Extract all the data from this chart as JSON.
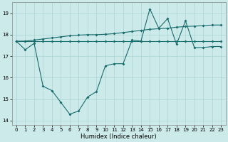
{
  "xlabel": "Humidex (Indice chaleur)",
  "background_color": "#cceaea",
  "line_color": "#1a6b6b",
  "grid_color": "#aad4d4",
  "xlim": [
    -0.5,
    23.5
  ],
  "ylim": [
    13.8,
    19.5
  ],
  "yticks": [
    14,
    15,
    16,
    17,
    18,
    19
  ],
  "xticks": [
    0,
    1,
    2,
    3,
    4,
    5,
    6,
    7,
    8,
    9,
    10,
    11,
    12,
    13,
    14,
    15,
    16,
    17,
    18,
    19,
    20,
    21,
    22,
    23
  ],
  "line_volatile_x": [
    0,
    1,
    2,
    3,
    4,
    5,
    6,
    7,
    8,
    9,
    10,
    11,
    12,
    13,
    14,
    15,
    16,
    17,
    18,
    19,
    20,
    21,
    22,
    23
  ],
  "line_volatile_y": [
    17.7,
    17.3,
    17.6,
    15.6,
    15.4,
    14.85,
    14.3,
    14.45,
    15.1,
    15.35,
    16.55,
    16.65,
    16.65,
    17.75,
    17.7,
    19.2,
    18.3,
    18.75,
    17.55,
    18.65,
    17.4,
    17.4,
    17.45,
    17.45
  ],
  "line_rising_x": [
    0,
    1,
    2,
    3,
    4,
    5,
    6,
    7,
    8,
    9,
    10,
    11,
    12,
    13,
    14,
    15,
    16,
    17,
    18,
    19,
    20,
    21,
    22,
    23
  ],
  "line_rising_y": [
    17.7,
    17.7,
    17.75,
    17.8,
    17.85,
    17.9,
    17.95,
    17.98,
    18.0,
    18.0,
    18.02,
    18.05,
    18.1,
    18.15,
    18.2,
    18.25,
    18.28,
    18.3,
    18.35,
    18.38,
    18.4,
    18.42,
    18.45,
    18.45
  ],
  "line_flat_x": [
    0,
    1,
    2,
    3,
    4,
    5,
    6,
    7,
    8,
    9,
    10,
    11,
    12,
    13,
    14,
    15,
    16,
    17,
    18,
    19,
    20,
    21,
    22,
    23
  ],
  "line_flat_y": [
    17.7,
    17.7,
    17.7,
    17.7,
    17.7,
    17.7,
    17.7,
    17.7,
    17.7,
    17.7,
    17.7,
    17.7,
    17.7,
    17.7,
    17.7,
    17.7,
    17.7,
    17.7,
    17.7,
    17.7,
    17.7,
    17.7,
    17.7,
    17.7
  ]
}
